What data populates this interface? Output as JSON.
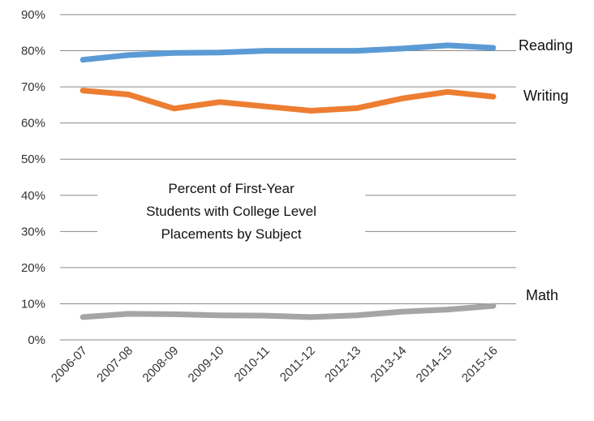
{
  "chart_data": {
    "type": "line",
    "title_lines": [
      "Percent of First-Year",
      "Students with College Level",
      "Placements by Subject"
    ],
    "categories": [
      "2006-07",
      "2007-08",
      "2008-09",
      "2009-10",
      "2010-11",
      "2011-12",
      "2012-13",
      "2013-14",
      "2014-15",
      "2015-16"
    ],
    "y_ticks": [
      "0%",
      "10%",
      "20%",
      "30%",
      "40%",
      "50%",
      "60%",
      "70%",
      "80%",
      "90%"
    ],
    "ylim": [
      0,
      90
    ],
    "grid": true,
    "series": [
      {
        "name": "Reading",
        "color": "#5B9BD5",
        "values": [
          77.5,
          78.8,
          79.4,
          79.5,
          80.0,
          80.0,
          80.0,
          80.6,
          81.5,
          80.8
        ]
      },
      {
        "name": "Writing",
        "color": "#ED7D31",
        "values": [
          69.0,
          67.9,
          64.0,
          65.8,
          64.6,
          63.4,
          64.1,
          66.8,
          68.6,
          67.3
        ]
      },
      {
        "name": "Math",
        "color": "#A5A5A5",
        "values": [
          6.3,
          7.2,
          7.1,
          6.8,
          6.7,
          6.3,
          6.8,
          7.8,
          8.4,
          9.4
        ]
      }
    ]
  }
}
